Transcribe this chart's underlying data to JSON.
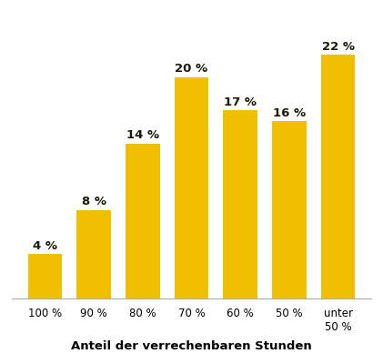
{
  "categories": [
    "100 %",
    "90 %",
    "80 %",
    "70 %",
    "60 %",
    "50 %",
    "unter\n50 %"
  ],
  "values": [
    4,
    8,
    14,
    20,
    17,
    16,
    22
  ],
  "bar_color": "#F0C000",
  "label_color": "#1a1a00",
  "xlabel": "Anteil der verrechenbaren Stunden",
  "xlabel_fontsize": 9.5,
  "label_fontsize": 9.5,
  "tick_fontsize": 8.5,
  "background_color": "#ffffff",
  "ylim": [
    0,
    23
  ],
  "bar_width": 0.7
}
